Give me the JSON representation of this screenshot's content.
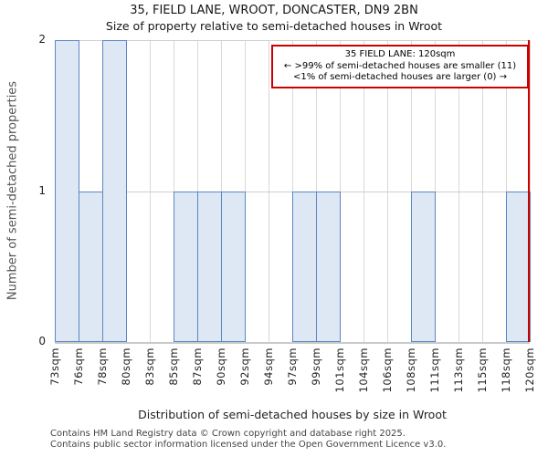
{
  "header": {
    "title": "35, FIELD LANE, WROOT, DONCASTER, DN9 2BN",
    "subtitle": "Size of property relative to semi-detached houses in Wroot"
  },
  "chart_data": {
    "type": "bar",
    "title": "35, FIELD LANE, WROOT, DONCASTER, DN9 2BN",
    "subtitle": "Size of property relative to semi-detached houses in Wroot",
    "xlabel": "Distribution of semi-detached houses by size in Wroot",
    "ylabel": "Number of semi-detached properties",
    "ylim": [
      0,
      2
    ],
    "yticks": [
      0,
      1,
      2
    ],
    "grid": true,
    "bin_edge_labels": [
      "73sqm",
      "76sqm",
      "78sqm",
      "80sqm",
      "83sqm",
      "85sqm",
      "87sqm",
      "90sqm",
      "92sqm",
      "94sqm",
      "97sqm",
      "99sqm",
      "101sqm",
      "104sqm",
      "106sqm",
      "108sqm",
      "111sqm",
      "113sqm",
      "115sqm",
      "118sqm",
      "120sqm"
    ],
    "values": [
      2,
      1,
      2,
      0,
      0,
      1,
      1,
      1,
      0,
      0,
      1,
      1,
      0,
      0,
      0,
      1,
      0,
      0,
      0,
      1
    ],
    "marker": {
      "label": "120sqm",
      "at_bin_edge_index": 20,
      "color": "#cc0000"
    },
    "annotation": {
      "line1": "35 FIELD LANE: 120sqm",
      "line2": "← >99% of semi-detached houses are smaller (11)",
      "line3": "<1% of semi-detached houses are larger (0) →"
    },
    "colors": {
      "bar_fill": "#dde8f4",
      "bar_edge": "#5b87c3",
      "grid": "#d8d8d8",
      "axis": "#c9c9c9",
      "marker": "#cc0000"
    }
  },
  "footer": {
    "line1": "Contains HM Land Registry data © Crown copyright and database right 2025.",
    "line2": "Contains public sector information licensed under the Open Government Licence v3.0."
  }
}
